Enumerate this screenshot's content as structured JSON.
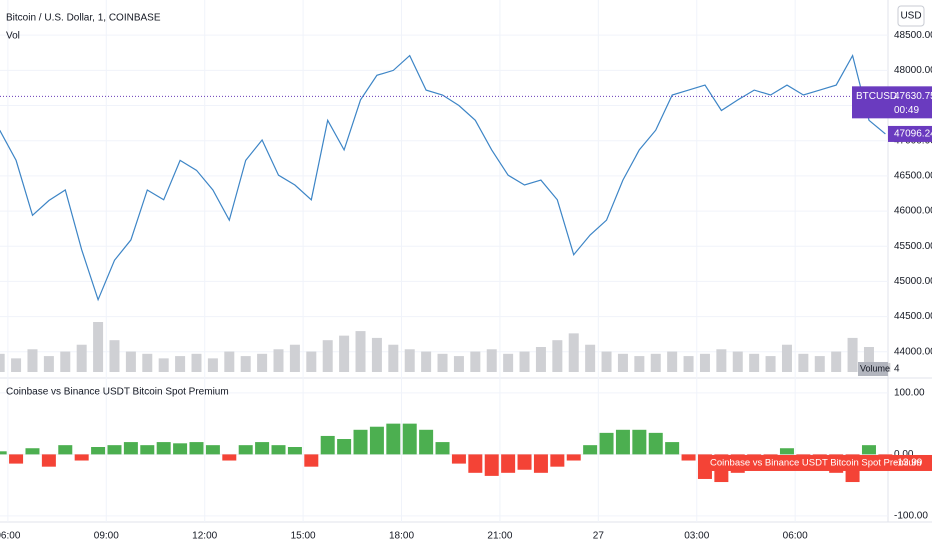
{
  "header": {
    "title": "Bitcoin / U.S. Dollar, 1, COINBASE",
    "indicator": "Vol",
    "currency_button": "USD"
  },
  "chart_data": [
    {
      "type": "line",
      "x": [
        5.75,
        6.25,
        6.75,
        7.25,
        7.75,
        8.25,
        8.75,
        9.25,
        9.75,
        10.25,
        10.75,
        11.25,
        11.75,
        12.25,
        12.75,
        13.25,
        13.75,
        14.25,
        14.75,
        15.25,
        15.75,
        16.25,
        16.75,
        17.25,
        17.75,
        18.25,
        18.75,
        19.25,
        19.75,
        20.25,
        20.75,
        21.25,
        21.75,
        22.25,
        22.75,
        23.25,
        23.75,
        24.25,
        24.75,
        25.25,
        25.75,
        26.25,
        26.75,
        27.25,
        27.75,
        28.25,
        28.75,
        29.25,
        29.75,
        30.25,
        30.75,
        31.25,
        31.75,
        32.25,
        32.75
      ],
      "series": [
        {
          "name": "BTCUSD",
          "color": "#3d85c6",
          "values": [
            47150,
            46720,
            45940,
            46150,
            46300,
            45450,
            44740,
            45300,
            45590,
            46300,
            46160,
            46720,
            46580,
            46300,
            45870,
            46720,
            47010,
            46510,
            46370,
            46160,
            47290,
            46870,
            47580,
            47930,
            48000,
            48210,
            47720,
            47650,
            47500,
            47290,
            46870,
            46510,
            46370,
            46440,
            46160,
            45380,
            45660,
            45870,
            46440,
            46870,
            47150,
            47650,
            47720,
            47790,
            47430,
            47580,
            47720,
            47650,
            47790,
            47650,
            47720,
            47790,
            48210,
            47290,
            47096.24
          ]
        },
        {
          "name": "Volume",
          "color": "#cfd0d4",
          "values": [
            8,
            6,
            10,
            7,
            9,
            12,
            22,
            14,
            9,
            8,
            6,
            7,
            8,
            6,
            9,
            7,
            8,
            10,
            12,
            9,
            14,
            16,
            18,
            15,
            12,
            10,
            9,
            8,
            7,
            9,
            10,
            8,
            9,
            11,
            14,
            17,
            12,
            9,
            8,
            7,
            8,
            9,
            7,
            8,
            10,
            9,
            8,
            7,
            12,
            8,
            7,
            9,
            15,
            11,
            4
          ]
        }
      ],
      "price_tag": {
        "name": "BTCUSD",
        "value": 47630.75,
        "countdown": "00:49"
      },
      "xlim": [
        5.76,
        32.83
      ],
      "ylim": [
        43670,
        49000
      ],
      "yticks": [
        {
          "value": 44000,
          "label": "44000.00"
        },
        {
          "value": 44500,
          "label": "44500.00"
        },
        {
          "value": 45000,
          "label": "45000.00"
        },
        {
          "value": 45500,
          "label": "45500.00"
        },
        {
          "value": 46000,
          "label": "46000.00"
        },
        {
          "value": 46500,
          "label": "46500.00"
        },
        {
          "value": 47000,
          "label": "47000.00"
        },
        {
          "value": 47500,
          "label": "47500.00"
        },
        {
          "value": 48000,
          "label": "48000.00"
        },
        {
          "value": 48500,
          "label": "48500.00"
        }
      ],
      "grid": true
    },
    {
      "type": "bar",
      "title": "Coinbase vs Binance USDT Bitcoin Spot Premium",
      "x": [
        5.75,
        6.25,
        6.75,
        7.25,
        7.75,
        8.25,
        8.75,
        9.25,
        9.75,
        10.25,
        10.75,
        11.25,
        11.75,
        12.25,
        12.75,
        13.25,
        13.75,
        14.25,
        14.75,
        15.25,
        15.75,
        16.25,
        16.75,
        17.25,
        17.75,
        18.25,
        18.75,
        19.25,
        19.75,
        20.25,
        20.75,
        21.25,
        21.75,
        22.25,
        22.75,
        23.25,
        23.75,
        24.25,
        24.75,
        25.25,
        25.75,
        26.25,
        26.75,
        27.25,
        27.75,
        28.25,
        28.75,
        29.25,
        29.75,
        30.25,
        30.75,
        31.25,
        31.75,
        32.25,
        32.75
      ],
      "values": [
        5,
        -15,
        10,
        -20,
        15,
        -10,
        12,
        15,
        20,
        15,
        20,
        18,
        20,
        15,
        -10,
        15,
        20,
        15,
        12,
        -20,
        30,
        25,
        40,
        45,
        50,
        50,
        40,
        20,
        -15,
        -30,
        -35,
        -30,
        -25,
        -30,
        -20,
        -10,
        15,
        35,
        40,
        40,
        35,
        20,
        -10,
        -40,
        -45,
        -30,
        -25,
        -10,
        10,
        -15,
        -20,
        -30,
        -45,
        15,
        -13.99
      ],
      "positive_color": "#4caf50",
      "negative_color": "#f44336",
      "xlim": [
        5.76,
        32.83
      ],
      "xticks": [
        {
          "value": 6,
          "label": "06:00"
        },
        {
          "value": 9,
          "label": "09:00"
        },
        {
          "value": 12,
          "label": "12:00"
        },
        {
          "value": 15,
          "label": "15:00"
        },
        {
          "value": 18,
          "label": "18:00"
        },
        {
          "value": 21,
          "label": "21:00"
        },
        {
          "value": 24,
          "label": "27"
        },
        {
          "value": 27,
          "label": "03:00"
        },
        {
          "value": 30,
          "label": "06:00"
        }
      ],
      "ylim": [
        -110,
        121
      ],
      "yticks": [
        {
          "value": 100,
          "label": "100.00"
        },
        {
          "value": 0,
          "label": "0.00"
        },
        {
          "value": -100,
          "label": "-100.00"
        }
      ],
      "grid": true
    }
  ]
}
